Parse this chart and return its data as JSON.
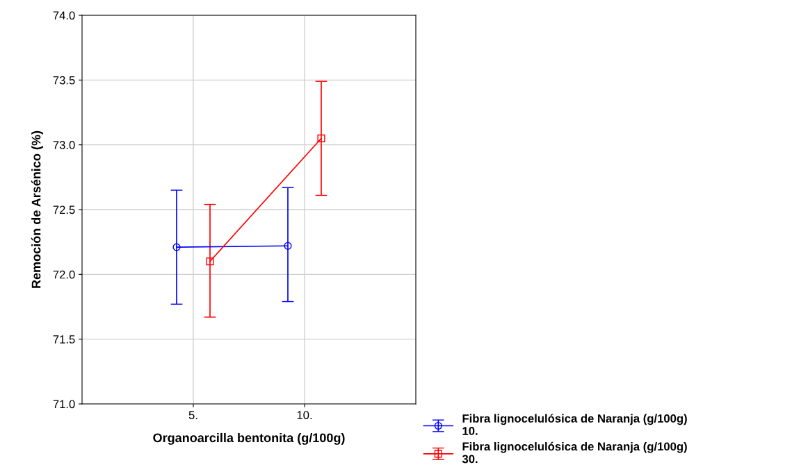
{
  "chart_data": {
    "type": "line",
    "xlabel": "Organoarcilla bentonita (g/100g)",
    "ylabel": "Remoción de Arsénico (%)",
    "categories": [
      "5.",
      "10."
    ],
    "series": [
      {
        "name": "Fibra lignocelulósica de Naranja (g/100g)\n10.",
        "color": "#0000ff",
        "marker": "circle",
        "values": [
          72.21,
          72.22
        ],
        "errors": [
          [
            71.77,
            72.65
          ],
          [
            71.79,
            72.67
          ]
        ]
      },
      {
        "name": "Fibra lignocelulósica de Naranja (g/100g)\n30.",
        "color": "#ff0000",
        "marker": "square",
        "values": [
          72.1,
          73.05
        ],
        "errors": [
          [
            71.67,
            72.54
          ],
          [
            72.61,
            73.49
          ]
        ]
      }
    ],
    "ylim": [
      71.0,
      74.0
    ],
    "yticks": [
      {
        "value": 71.0,
        "label": "71.0"
      },
      {
        "value": 71.5,
        "label": "71.5"
      },
      {
        "value": 72.0,
        "label": "72.0"
      },
      {
        "value": 72.5,
        "label": "72.5"
      },
      {
        "value": 73.0,
        "label": "73.0"
      },
      {
        "value": 73.5,
        "label": "73.5"
      },
      {
        "value": 74.0,
        "label": "74.0"
      }
    ],
    "grid": true,
    "legend": "bottom right"
  }
}
